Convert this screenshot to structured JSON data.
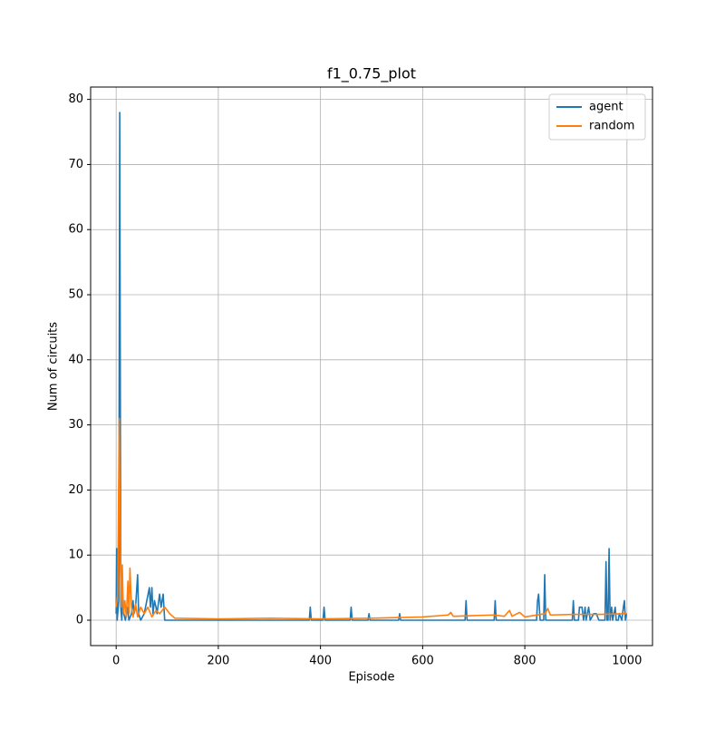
{
  "chart_data": {
    "type": "line",
    "title": "f1_0.75_plot",
    "x_label": "Episode",
    "y_label": "Num of circuits",
    "xlim": [
      -50,
      1050
    ],
    "ylim": [
      -3.9,
      81.9
    ],
    "xticks": [
      0,
      200,
      400,
      600,
      800,
      1000
    ],
    "yticks": [
      0,
      10,
      20,
      30,
      40,
      50,
      60,
      70,
      80
    ],
    "grid": true,
    "legend": "upper right",
    "series": [
      {
        "name": "agent",
        "color": "#1f77b4",
        "x": [
          0,
          1,
          2,
          5,
          7,
          9,
          11,
          13,
          15,
          18,
          22,
          25,
          30,
          33,
          35,
          38,
          42,
          44,
          48,
          55,
          65,
          67,
          70,
          72,
          75,
          78,
          80,
          85,
          88,
          92,
          95,
          100,
          378,
          380,
          382,
          405,
          407,
          409,
          458,
          460,
          462,
          493,
          495,
          497,
          553,
          555,
          557,
          683,
          685,
          687,
          740,
          742,
          744,
          823,
          825,
          827,
          830,
          837,
          839,
          841,
          893,
          895,
          897,
          905,
          907,
          912,
          915,
          918,
          920,
          925,
          928,
          935,
          940,
          945,
          957,
          959,
          961,
          963,
          965,
          967,
          970,
          972,
          977,
          979,
          983,
          985,
          990,
          993,
          995,
          997,
          999
        ],
        "values": [
          1,
          11,
          0,
          3,
          78,
          2,
          0,
          4,
          1,
          0,
          2,
          0,
          1,
          3,
          1,
          2,
          7,
          1,
          0,
          1,
          5,
          2,
          5,
          1,
          3,
          2,
          1,
          4,
          2,
          4,
          0,
          0,
          0,
          2,
          0,
          0,
          2,
          0,
          0,
          2,
          0,
          0,
          1,
          0,
          0,
          1,
          0,
          0,
          3,
          0,
          0,
          3,
          0,
          0,
          3,
          4,
          0,
          0,
          7,
          0,
          0,
          3,
          0,
          0,
          2,
          2,
          0,
          2,
          0,
          2,
          0,
          1,
          1,
          0,
          0,
          9,
          0,
          0,
          11,
          0,
          2,
          0,
          2,
          0,
          0,
          1,
          0,
          2,
          3,
          0,
          1
        ]
      },
      {
        "name": "random",
        "color": "#ff7f0e",
        "x": [
          0,
          3,
          6,
          8,
          10,
          12,
          14,
          17,
          20,
          23,
          25,
          27,
          30,
          33,
          38,
          42,
          48,
          55,
          62,
          70,
          78,
          85,
          95,
          105,
          115,
          200,
          300,
          400,
          500,
          600,
          650,
          655,
          660,
          700,
          740,
          760,
          770,
          775,
          790,
          800,
          840,
          845,
          850,
          900,
          950,
          1000
        ],
        "values": [
          2,
          4,
          31,
          10,
          2,
          8.5,
          1,
          3,
          0.5,
          6,
          1,
          8,
          2,
          0.5,
          2.5,
          0.5,
          2,
          1,
          2,
          0.5,
          1.5,
          1,
          2,
          1,
          0.3,
          0.2,
          0.3,
          0.2,
          0.3,
          0.5,
          0.8,
          1.2,
          0.6,
          0.7,
          0.8,
          0.6,
          1.5,
          0.6,
          1.2,
          0.5,
          1,
          1.8,
          0.8,
          0.9,
          0.9,
          1
        ]
      }
    ]
  }
}
